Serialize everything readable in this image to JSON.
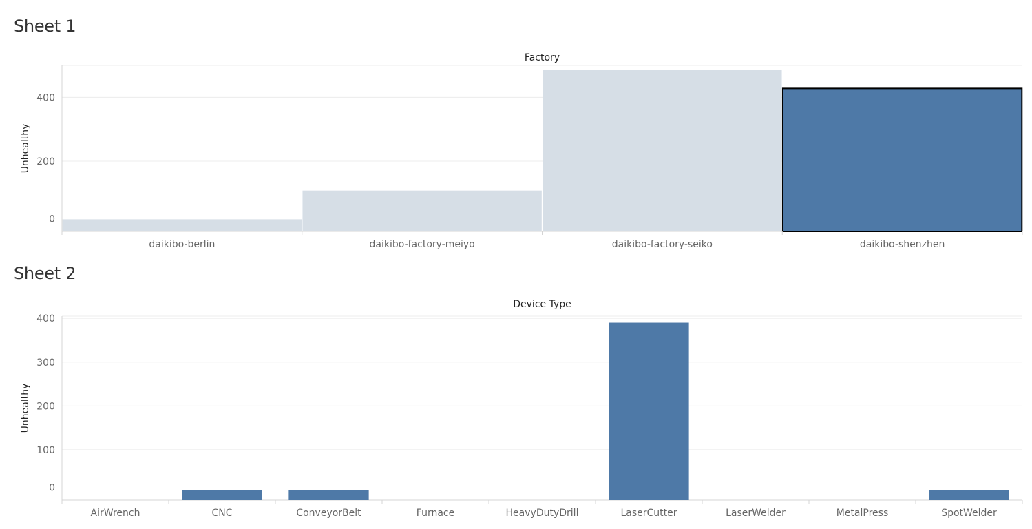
{
  "sheets": [
    {
      "title": "Sheet 1"
    },
    {
      "title": "Sheet 2"
    }
  ],
  "colors": {
    "selected_bar": "#4e79a7",
    "dimmed_bar": "#d6dee6",
    "selection_outline": "#000000"
  },
  "chart_data": [
    {
      "type": "bar",
      "title": "Factory",
      "ylabel": "Unhealthy",
      "categories": [
        "daikibo-berlin",
        "daikibo-factory-meiyo",
        "daikibo-factory-seiko",
        "daikibo-shenzhen"
      ],
      "values": [
        18,
        108,
        486,
        428
      ],
      "yticks": [
        0,
        200,
        400
      ],
      "ylim": [
        -20,
        500
      ],
      "selected": "daikibo-shenzhen",
      "grid": true
    },
    {
      "type": "bar",
      "title": "Device Type",
      "ylabel": "Unhealthy",
      "categories": [
        "AirWrench",
        "CNC",
        "ConveyorBelt",
        "Furnace",
        "HeavyDutyDrill",
        "LaserCutter",
        "LaserWelder",
        "MetalPress",
        "SpotWelder"
      ],
      "values": [
        0,
        8,
        8,
        0,
        0,
        390,
        0,
        0,
        8
      ],
      "yticks": [
        0,
        100,
        200,
        300,
        400
      ],
      "ylim": [
        -15,
        405
      ],
      "grid": true
    }
  ]
}
